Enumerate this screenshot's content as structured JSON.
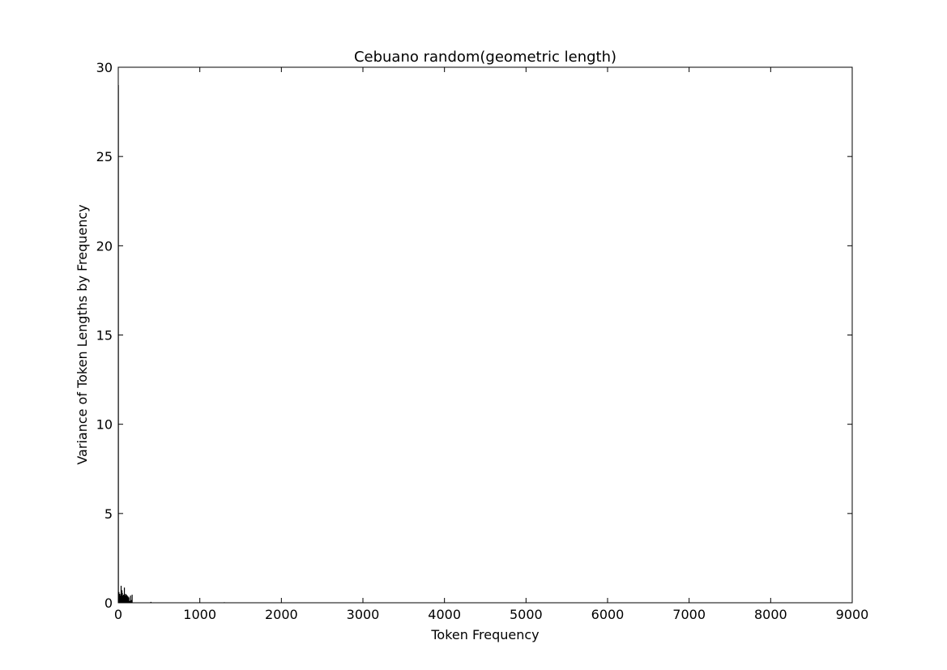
{
  "chart_data": {
    "type": "bar",
    "title": "Cebuano random(geometric length)",
    "xlabel": "Token Frequency",
    "ylabel": "Variance of Token Lengths by Frequency",
    "xlim": [
      0,
      9000
    ],
    "ylim": [
      0,
      30
    ],
    "xticks": [
      0,
      1000,
      2000,
      3000,
      4000,
      5000,
      6000,
      7000,
      8000,
      9000
    ],
    "yticks": [
      0,
      5,
      10,
      15,
      20,
      25,
      30
    ],
    "grid": false,
    "bar_color": "#000000",
    "series": [
      {
        "x": [
          1,
          3,
          5,
          8,
          10,
          13,
          16,
          20,
          25,
          30,
          35,
          40,
          45,
          50,
          55,
          60,
          65,
          70,
          75,
          80,
          85,
          90,
          95,
          100,
          110,
          120,
          130,
          140,
          150,
          160,
          170,
          400,
          1300,
          2600
        ],
        "values": [
          29,
          0.5,
          0.3,
          0.6,
          0.4,
          0.5,
          0.3,
          0.5,
          0.2,
          0.4,
          0.95,
          0.45,
          0.7,
          0.55,
          0.4,
          0.3,
          0.45,
          0.35,
          0.85,
          0.3,
          0.4,
          0.5,
          0.3,
          0.45,
          0.4,
          0.35,
          0.3,
          0.1,
          0.4,
          0.15,
          0.45,
          0.05,
          0.03,
          0.02
        ]
      }
    ]
  }
}
